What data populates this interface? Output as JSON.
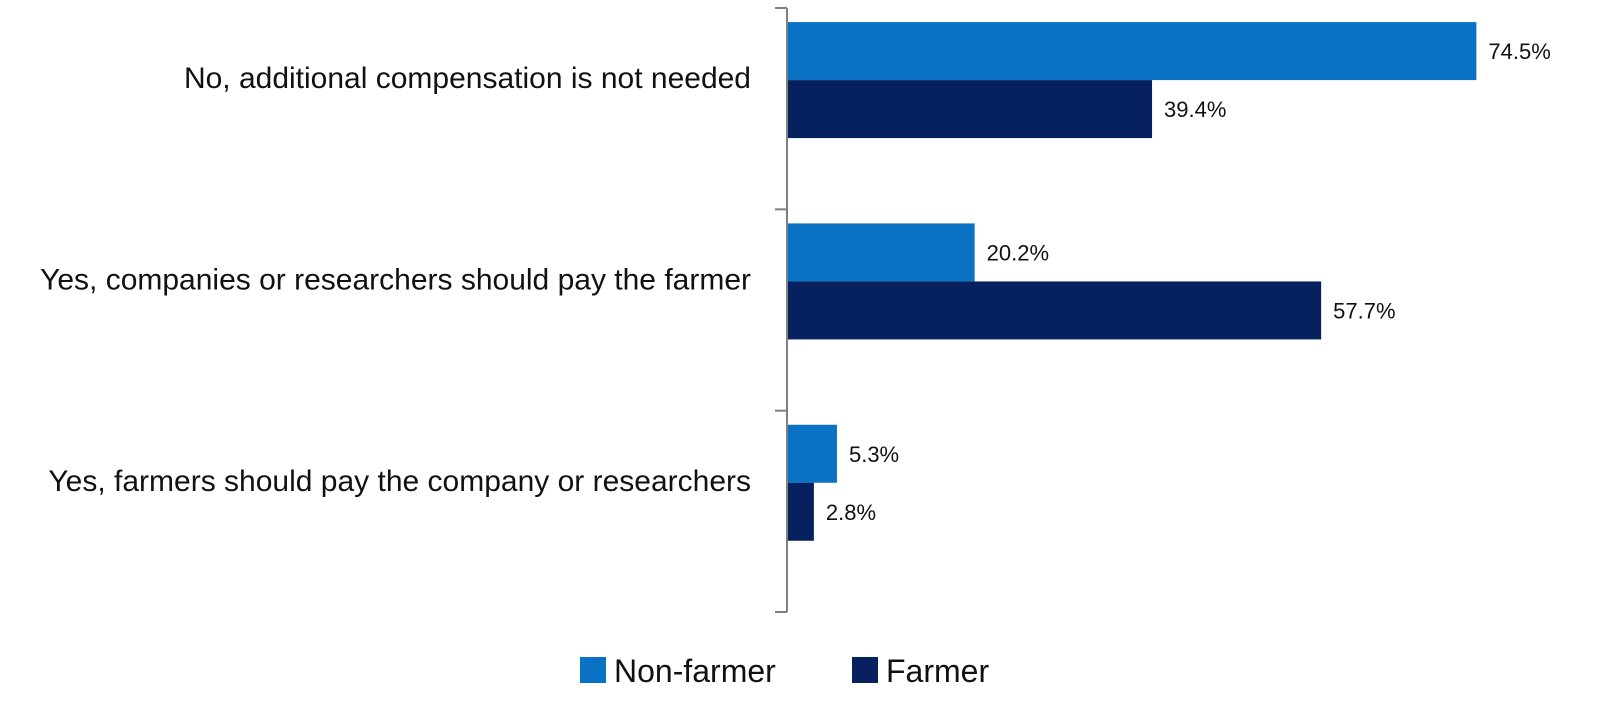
{
  "chart_data": {
    "type": "bar",
    "orientation": "horizontal",
    "categories": [
      "No, additional compensation is not needed",
      "Yes, companies or researchers should pay the farmer",
      "Yes, farmers should pay the company or researchers"
    ],
    "series": [
      {
        "name": "Non-farmer",
        "color": "#0a72c4",
        "values": [
          74.5,
          20.2,
          5.3
        ],
        "labels": [
          "74.5%",
          "20.2%",
          "5.3%"
        ]
      },
      {
        "name": "Farmer",
        "color": "#06215e",
        "values": [
          39.4,
          57.7,
          2.8
        ],
        "labels": [
          "39.4%",
          "57.7%",
          "2.8%"
        ]
      }
    ],
    "title": "",
    "xlabel": "",
    "ylabel": "",
    "xlim": [
      0,
      75
    ],
    "grid": false,
    "legend_position": "bottom-center"
  }
}
